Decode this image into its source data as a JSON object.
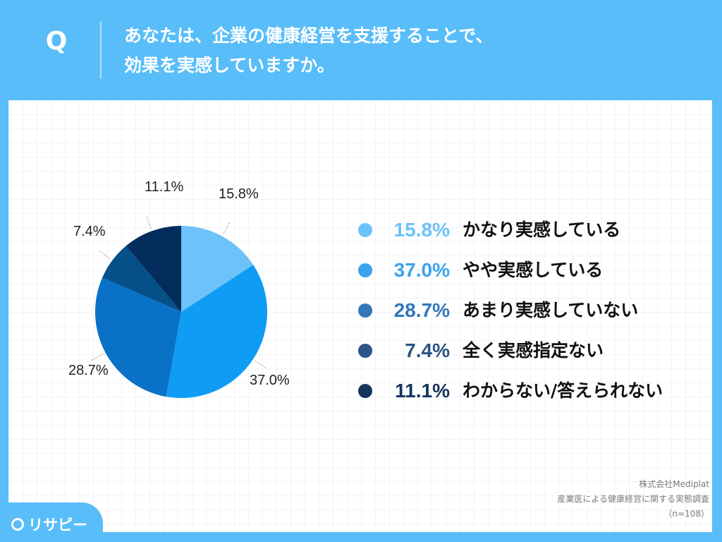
{
  "header": {
    "q_mark": "Q",
    "question_line1": "あなたは、企業の健康経営を支援することで、",
    "question_line2": "効果を実感していますか。"
  },
  "chart_data": {
    "type": "pie",
    "categories": [
      "かなり実感している",
      "やや実感している",
      "あまり実感していない",
      "全く実感指定ない",
      "わからない/答えられない"
    ],
    "values": [
      15.8,
      37.0,
      28.7,
      7.4,
      11.1
    ],
    "labels": [
      "15.8%",
      "37.0%",
      "28.7%",
      "7.4%",
      "11.1%"
    ],
    "colors": [
      "#6cc2f9",
      "#0e9cf4",
      "#0a72c6",
      "#06508a",
      "#032d5c"
    ],
    "start": "12 o'clock, clockwise"
  },
  "legend": {
    "items": [
      {
        "value": "15.8%",
        "label": "かなり実感している",
        "color": "#6cc2f9"
      },
      {
        "value": "37.0%",
        "label": "やや実感している",
        "color": "#3aa3ee"
      },
      {
        "value": "28.7%",
        "label": "あまり実感していない",
        "color": "#3477b8"
      },
      {
        "value": "7.4%",
        "label": "全く実感指定ない",
        "color": "#2a5584"
      },
      {
        "value": "11.1%",
        "label": "わからない/答えられない",
        "color": "#17345c"
      }
    ]
  },
  "source": {
    "company": "株式会社Mediplat",
    "survey": "産業医による健康経営に関する実態調査",
    "sample": "（n=108）"
  },
  "logo": {
    "text": "リサピー"
  }
}
